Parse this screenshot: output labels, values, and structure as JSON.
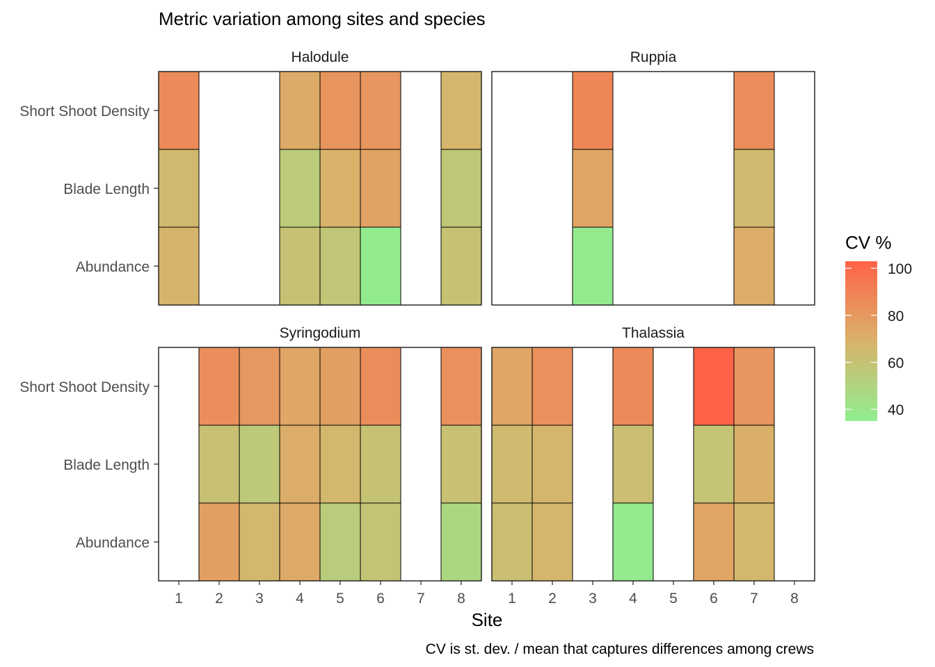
{
  "chart_data": {
    "type": "heatmap",
    "title": "Metric variation among sites and species",
    "xlabel": "Site",
    "ylabel": "",
    "caption": "CV is st. dev. / mean that captures differences among crews",
    "x_ticks": [
      "1",
      "2",
      "3",
      "4",
      "5",
      "6",
      "7",
      "8"
    ],
    "y_categories": [
      "Short Shoot Density",
      "Blade Length",
      "Abundance"
    ],
    "legend": {
      "title": "CV %",
      "ticks": [
        40,
        60,
        80,
        100
      ],
      "range": [
        35,
        103
      ],
      "color_low": "#90ee90",
      "color_mid": "#d9b26a",
      "color_high": "#ff6347",
      "position": "right"
    },
    "panels": [
      {
        "name": "Halodule",
        "cells": [
          {
            "site": 1,
            "metric": "Short Shoot Density",
            "cv": 86
          },
          {
            "site": 4,
            "metric": "Short Shoot Density",
            "cv": 72
          },
          {
            "site": 5,
            "metric": "Short Shoot Density",
            "cv": 82
          },
          {
            "site": 6,
            "metric": "Short Shoot Density",
            "cv": 81
          },
          {
            "site": 8,
            "metric": "Short Shoot Density",
            "cv": 67
          },
          {
            "site": 1,
            "metric": "Blade Length",
            "cv": 65
          },
          {
            "site": 4,
            "metric": "Blade Length",
            "cv": 55
          },
          {
            "site": 5,
            "metric": "Blade Length",
            "cv": 69
          },
          {
            "site": 6,
            "metric": "Blade Length",
            "cv": 76
          },
          {
            "site": 8,
            "metric": "Blade Length",
            "cv": 57
          },
          {
            "site": 1,
            "metric": "Abundance",
            "cv": 68
          },
          {
            "site": 4,
            "metric": "Abundance",
            "cv": 60
          },
          {
            "site": 5,
            "metric": "Abundance",
            "cv": 58
          },
          {
            "site": 6,
            "metric": "Abundance",
            "cv": 36
          },
          {
            "site": 8,
            "metric": "Abundance",
            "cv": 60
          }
        ]
      },
      {
        "name": "Ruppia",
        "cells": [
          {
            "site": 3,
            "metric": "Short Shoot Density",
            "cv": 88
          },
          {
            "site": 7,
            "metric": "Short Shoot Density",
            "cv": 85
          },
          {
            "site": 3,
            "metric": "Blade Length",
            "cv": 75
          },
          {
            "site": 7,
            "metric": "Blade Length",
            "cv": 65
          },
          {
            "site": 3,
            "metric": "Abundance",
            "cv": 37
          },
          {
            "site": 7,
            "metric": "Abundance",
            "cv": 71
          }
        ]
      },
      {
        "name": "Syringodium",
        "cells": [
          {
            "site": 2,
            "metric": "Short Shoot Density",
            "cv": 84
          },
          {
            "site": 3,
            "metric": "Short Shoot Density",
            "cv": 80
          },
          {
            "site": 4,
            "metric": "Short Shoot Density",
            "cv": 74
          },
          {
            "site": 5,
            "metric": "Short Shoot Density",
            "cv": 77
          },
          {
            "site": 6,
            "metric": "Short Shoot Density",
            "cv": 85
          },
          {
            "site": 8,
            "metric": "Short Shoot Density",
            "cv": 83
          },
          {
            "site": 2,
            "metric": "Blade Length",
            "cv": 61
          },
          {
            "site": 3,
            "metric": "Blade Length",
            "cv": 56
          },
          {
            "site": 4,
            "metric": "Blade Length",
            "cv": 71
          },
          {
            "site": 5,
            "metric": "Blade Length",
            "cv": 66
          },
          {
            "site": 6,
            "metric": "Blade Length",
            "cv": 60
          },
          {
            "site": 8,
            "metric": "Blade Length",
            "cv": 61
          },
          {
            "site": 2,
            "metric": "Abundance",
            "cv": 77
          },
          {
            "site": 3,
            "metric": "Abundance",
            "cv": 66
          },
          {
            "site": 4,
            "metric": "Abundance",
            "cv": 73
          },
          {
            "site": 5,
            "metric": "Abundance",
            "cv": 54
          },
          {
            "site": 6,
            "metric": "Abundance",
            "cv": 59
          },
          {
            "site": 8,
            "metric": "Abundance",
            "cv": 48
          }
        ]
      },
      {
        "name": "Thalassia",
        "cells": [
          {
            "site": 1,
            "metric": "Short Shoot Density",
            "cv": 74
          },
          {
            "site": 2,
            "metric": "Short Shoot Density",
            "cv": 83
          },
          {
            "site": 4,
            "metric": "Short Shoot Density",
            "cv": 86
          },
          {
            "site": 6,
            "metric": "Short Shoot Density",
            "cv": 103
          },
          {
            "site": 7,
            "metric": "Short Shoot Density",
            "cv": 81
          },
          {
            "site": 1,
            "metric": "Blade Length",
            "cv": 64
          },
          {
            "site": 2,
            "metric": "Blade Length",
            "cv": 67
          },
          {
            "site": 4,
            "metric": "Blade Length",
            "cv": 62
          },
          {
            "site": 6,
            "metric": "Blade Length",
            "cv": 59
          },
          {
            "site": 7,
            "metric": "Blade Length",
            "cv": 70
          },
          {
            "site": 1,
            "metric": "Abundance",
            "cv": 62
          },
          {
            "site": 2,
            "metric": "Abundance",
            "cv": 67
          },
          {
            "site": 4,
            "metric": "Abundance",
            "cv": 37
          },
          {
            "site": 6,
            "metric": "Abundance",
            "cv": 75
          },
          {
            "site": 7,
            "metric": "Abundance",
            "cv": 66
          }
        ]
      }
    ]
  }
}
